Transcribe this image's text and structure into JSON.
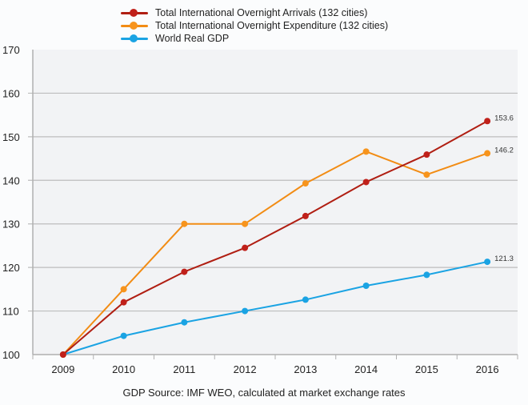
{
  "chart_data": {
    "type": "line",
    "title": "",
    "xlabel": "",
    "ylabel": "",
    "categories": [
      "2009",
      "2010",
      "2011",
      "2012",
      "2013",
      "2014",
      "2015",
      "2016"
    ],
    "ylim": [
      100,
      170
    ],
    "yticks": [
      100,
      110,
      120,
      130,
      140,
      150,
      160,
      170
    ],
    "grid": true,
    "legend_position": "top-center",
    "series": [
      {
        "name": "Total International Overnight Arrivals (132 cities)",
        "color": "#c0201a",
        "line_color": "#b01e12",
        "values": [
          100,
          112.0,
          119.0,
          124.5,
          131.8,
          139.6,
          145.9,
          153.6
        ],
        "end_label": "153.6"
      },
      {
        "name": "Total International Overnight Expenditure (132 cities)",
        "color": "#f7941d",
        "line_color": "#f28c14",
        "values": [
          100,
          115.0,
          130.0,
          130.0,
          139.3,
          146.6,
          141.3,
          146.2
        ],
        "end_label": "146.2"
      },
      {
        "name": "World Real GDP",
        "color": "#1aa3e3",
        "line_color": "#1aa3e3",
        "values": [
          100,
          104.3,
          107.4,
          110.0,
          112.6,
          115.8,
          118.3,
          121.3
        ],
        "end_label": "121.3"
      }
    ],
    "annotations": [
      "153.6",
      "146.2",
      "121.3"
    ]
  },
  "footer": {
    "source": "GDP Source: IMF WEO, calculated at market exchange rates"
  },
  "style": {
    "plot_background": "#f2f3f5",
    "gridline": "#bdbdbd",
    "axis": "#b0b0b0"
  }
}
